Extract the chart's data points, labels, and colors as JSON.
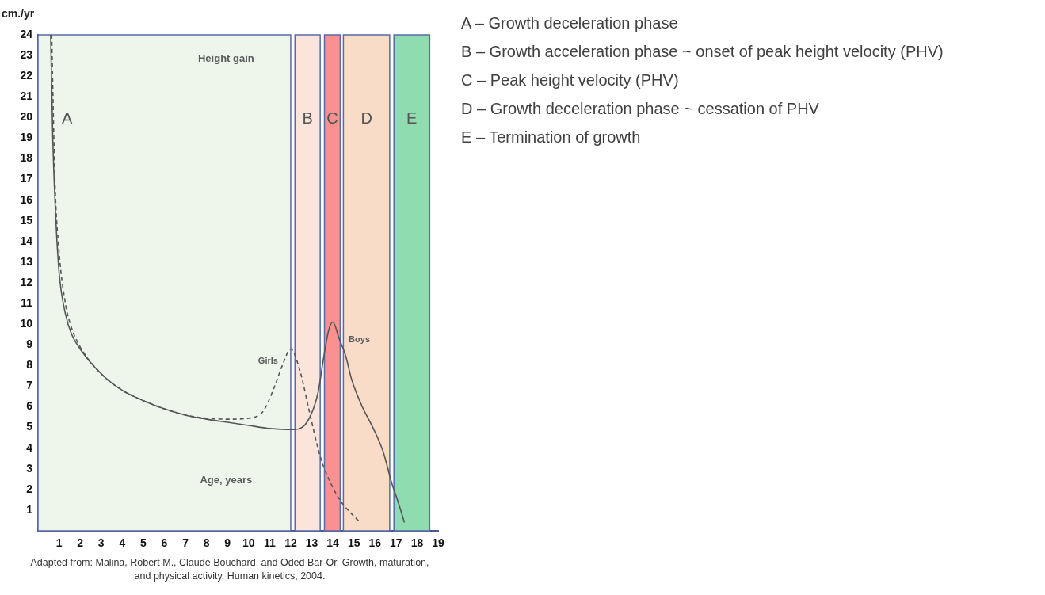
{
  "chart_data": {
    "type": "line",
    "title": "Height gain",
    "xlabel": "Age, years",
    "ylabel": "cm./yr",
    "xlim": [
      0,
      19
    ],
    "ylim": [
      0,
      24
    ],
    "xticks": [
      1,
      2,
      3,
      4,
      5,
      6,
      7,
      8,
      9,
      10,
      11,
      12,
      13,
      14,
      15,
      16,
      17,
      18,
      19
    ],
    "yticks": [
      1,
      2,
      3,
      4,
      5,
      6,
      7,
      8,
      9,
      10,
      11,
      12,
      13,
      14,
      15,
      16,
      17,
      18,
      19,
      20,
      21,
      22,
      23,
      24
    ],
    "grid": false,
    "legend": false,
    "series": [
      {
        "name": "Girls",
        "color": "#555555",
        "line_style": "dashed",
        "x": [
          0.65,
          0.8,
          1,
          1.3,
          1.6,
          2,
          3,
          4,
          5,
          6,
          7,
          8,
          9,
          10,
          10.7,
          11.2,
          11.6,
          12,
          12.45,
          12.9,
          13.4,
          13.9,
          14.4,
          15.3
        ],
        "values": [
          24,
          17,
          13.5,
          11,
          9.8,
          8.9,
          7.6,
          6.8,
          6.3,
          5.9,
          5.6,
          5.45,
          5.4,
          5.45,
          5.8,
          6.9,
          8,
          8.8,
          7.7,
          5.7,
          3.6,
          2.3,
          1.4,
          0.4
        ]
      },
      {
        "name": "Boys",
        "color": "#555555",
        "line_style": "solid",
        "x": [
          0.6,
          0.7,
          0.85,
          1,
          1.3,
          1.6,
          2,
          3,
          4,
          5,
          6,
          7,
          8,
          9,
          10,
          11,
          12.2,
          12.8,
          13.3,
          13.55,
          13.8,
          14,
          14.3,
          14.6,
          14.9,
          15.4,
          15.9,
          16.4,
          16.8,
          17.1,
          17.4
        ],
        "values": [
          24,
          19,
          15,
          12.5,
          10.5,
          9.5,
          8.8,
          7.6,
          6.8,
          6.3,
          5.9,
          5.6,
          5.4,
          5.25,
          5.1,
          4.95,
          4.9,
          5.3,
          6.7,
          8.3,
          9.7,
          10.1,
          9.3,
          8.5,
          7.3,
          6,
          5,
          3.8,
          2.3,
          1.4,
          0.4
        ]
      }
    ],
    "bands": [
      {
        "axis": "x",
        "from": 0,
        "to": 12,
        "color": "#eef6ec",
        "label": "A"
      },
      {
        "axis": "x",
        "from": 12.2,
        "to": 13.4,
        "color": "#fbe4d9",
        "label": "B"
      },
      {
        "axis": "x",
        "from": 13.6,
        "to": 14.35,
        "color": "#fb9090",
        "label": "C"
      },
      {
        "axis": "x",
        "from": 14.5,
        "to": 16.7,
        "color": "#f8dcc8",
        "label": "D"
      },
      {
        "axis": "x",
        "from": 16.9,
        "to": 18.6,
        "color": "#8fdcb1",
        "label": "E"
      }
    ],
    "annotations": [
      "A – Growth deceleration phase",
      "B – Growth acceleration phase ~ onset of peak height velocity (PHV)",
      "C – Peak height velocity (PHV)",
      "D – Growth deceleration phase ~ cessation of PHV",
      "E – Termination of growth",
      "Adapted from: Malina, Robert M., Claude Bouchard, and Oded Bar-Or. Growth, maturation, and physical activity. Human kinetics, 2004."
    ]
  }
}
